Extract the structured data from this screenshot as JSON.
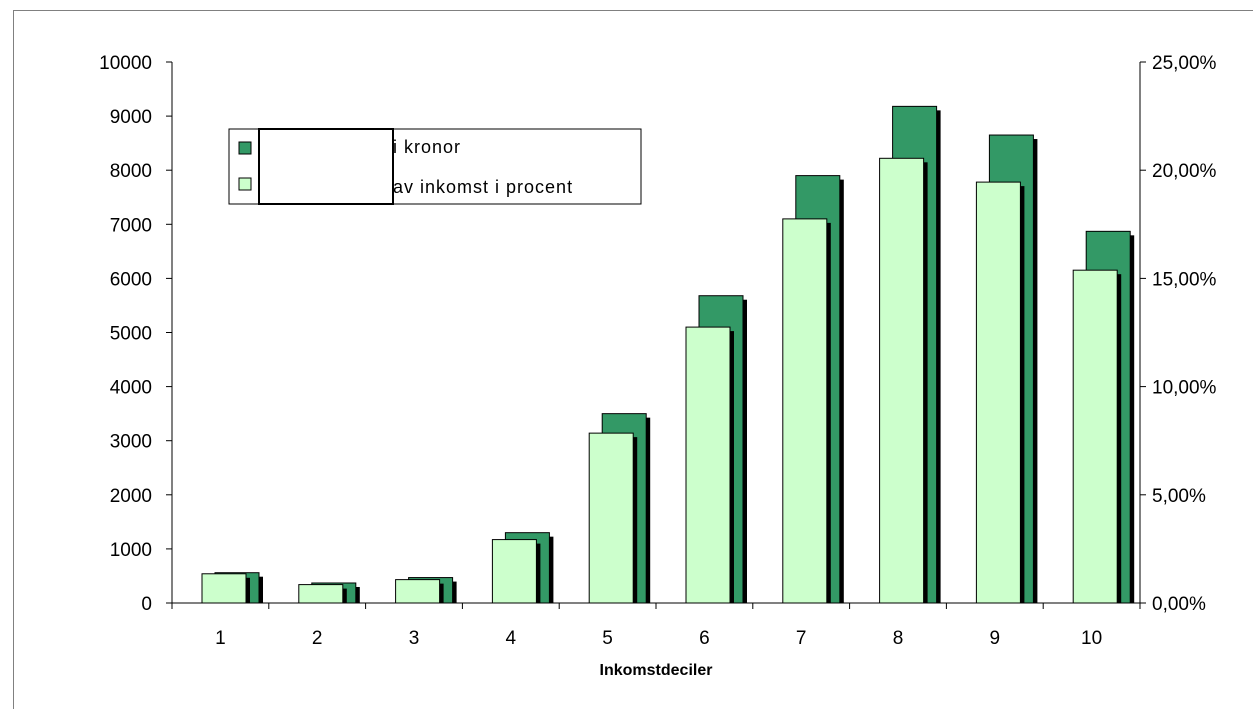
{
  "chart_data": {
    "type": "bar",
    "title": "",
    "categories": [
      "1",
      "2",
      "3",
      "4",
      "5",
      "6",
      "7",
      "8",
      "9",
      "10"
    ],
    "series": [
      {
        "name": "i kronor",
        "axis": "left",
        "color": "#339966",
        "values": [
          560,
          370,
          470,
          1300,
          3500,
          5680,
          7900,
          9180,
          8650,
          6870
        ]
      },
      {
        "name": "av inkomst i procent",
        "axis": "right",
        "color": "#ccffcc",
        "values": [
          1.35,
          0.85,
          1.08,
          2.93,
          7.85,
          12.75,
          17.75,
          20.55,
          19.45,
          15.38
        ]
      }
    ],
    "xlabel": "Inkomstdeciler",
    "ylabel": "",
    "ylim": [
      0,
      10000
    ],
    "y_ticks": [
      "0",
      "1000",
      "2000",
      "3000",
      "4000",
      "5000",
      "6000",
      "7000",
      "8000",
      "9000",
      "10000"
    ],
    "y2lim": [
      0,
      25
    ],
    "y2_ticks": [
      "0,00%",
      "5,00%",
      "10,00%",
      "15,00%",
      "20,00%",
      "25,00%"
    ],
    "grid": false,
    "legend_position": "top-left"
  }
}
